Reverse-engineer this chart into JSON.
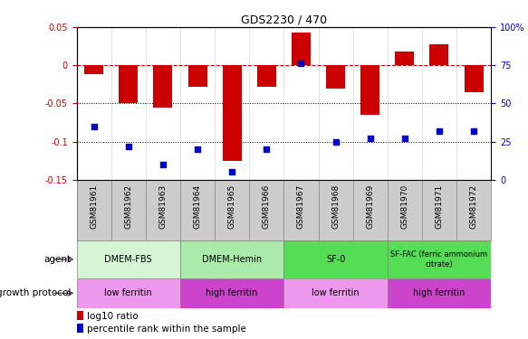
{
  "title": "GDS2230 / 470",
  "samples": [
    "GSM81961",
    "GSM81962",
    "GSM81963",
    "GSM81964",
    "GSM81965",
    "GSM81966",
    "GSM81967",
    "GSM81968",
    "GSM81969",
    "GSM81970",
    "GSM81971",
    "GSM81972"
  ],
  "log10_ratio": [
    -0.012,
    -0.05,
    -0.055,
    -0.028,
    -0.125,
    -0.028,
    0.043,
    -0.03,
    -0.065,
    0.018,
    0.028,
    -0.035
  ],
  "percentile_rank": [
    35,
    22,
    10,
    20,
    5,
    20,
    76,
    25,
    27,
    27,
    32,
    32
  ],
  "ylim_left": [
    -0.15,
    0.05
  ],
  "ylim_right": [
    0,
    100
  ],
  "yticks_left": [
    -0.15,
    -0.1,
    -0.05,
    0.0,
    0.05
  ],
  "yticks_right": [
    0,
    25,
    50,
    75,
    100
  ],
  "hline_y": 0.0,
  "dotted_lines": [
    -0.05,
    -0.1
  ],
  "agent_groups": [
    {
      "label": "DMEM-FBS",
      "start": 0,
      "end": 3,
      "color": "#d5f5d5"
    },
    {
      "label": "DMEM-Hemin",
      "start": 3,
      "end": 6,
      "color": "#aaeaaa"
    },
    {
      "label": "SF-0",
      "start": 6,
      "end": 9,
      "color": "#55dd55"
    },
    {
      "label": "SF-FAC (ferric ammonium\ncitrate)",
      "start": 9,
      "end": 12,
      "color": "#55dd55"
    }
  ],
  "growth_groups": [
    {
      "label": "low ferritin",
      "start": 0,
      "end": 3,
      "color": "#ee99ee"
    },
    {
      "label": "high ferritin",
      "start": 3,
      "end": 6,
      "color": "#cc44cc"
    },
    {
      "label": "low ferritin",
      "start": 6,
      "end": 9,
      "color": "#ee99ee"
    },
    {
      "label": "high ferritin",
      "start": 9,
      "end": 12,
      "color": "#cc44cc"
    }
  ],
  "bar_color": "#cc0000",
  "scatter_color": "#0000cc",
  "legend1": "log10 ratio",
  "legend2": "percentile rank within the sample",
  "agent_label": "agent",
  "growth_label": "growth protocol",
  "label_bg": "#dddddd",
  "sample_bg": "#cccccc"
}
